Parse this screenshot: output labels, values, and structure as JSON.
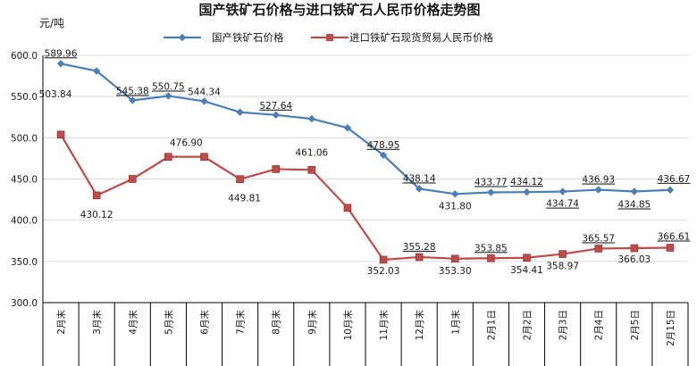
{
  "chart_data": {
    "type": "line",
    "title": "国产铁矿石价格与进口铁矿石人民币价格走势图",
    "ylabel": "元/吨",
    "xlabel": "",
    "ylim": [
      300,
      600
    ],
    "yticks": [
      "300.0",
      "350.0",
      "400.0",
      "450.0",
      "500.0",
      "550.0",
      "600.0"
    ],
    "grid": true,
    "legend_position": "top",
    "categories": [
      "2月末",
      "3月末",
      "4月末",
      "5月末",
      "6月末",
      "7月末",
      "8月末",
      "9月末",
      "10月末",
      "11月末",
      "12月末",
      "1月末",
      "2月1日",
      "2月2日",
      "2月3日",
      "2月4日",
      "2月5日",
      "2月15日"
    ],
    "series": [
      {
        "name": "国产铁矿石价格",
        "color": "#4a7ebb",
        "marker": "diamond",
        "values": [
          589.96,
          581,
          545.38,
          550.75,
          544.34,
          531,
          527.64,
          523,
          512,
          478.95,
          438.14,
          431.8,
          433.77,
          434.12,
          434.74,
          436.93,
          434.85,
          436.67
        ],
        "labels": [
          "589.96",
          "",
          "545.38",
          "550.75",
          "544.34",
          "",
          "527.64",
          "",
          "",
          "478.95",
          "438.14",
          "431.80",
          "433.77",
          "434.12",
          "434.74",
          "436.93",
          "434.85",
          "436.67"
        ]
      },
      {
        "name": "进口铁矿石现货贸易人民币价格",
        "color": "#be4b48",
        "marker": "square",
        "values": [
          503.84,
          430.12,
          450,
          476.9,
          476.9,
          449.81,
          462,
          461.06,
          415,
          352.03,
          355.28,
          353.3,
          353.85,
          354.41,
          358.97,
          365.57,
          366.03,
          366.61
        ],
        "labels": [
          "503.84",
          "430.12",
          "",
          "476.90",
          "",
          "449.81",
          "",
          "461.06",
          "",
          "352.03",
          "355.28",
          "353.30",
          "353.85",
          "354.41",
          "358.97",
          "365.57",
          "366.03",
          "366.61"
        ]
      }
    ]
  }
}
